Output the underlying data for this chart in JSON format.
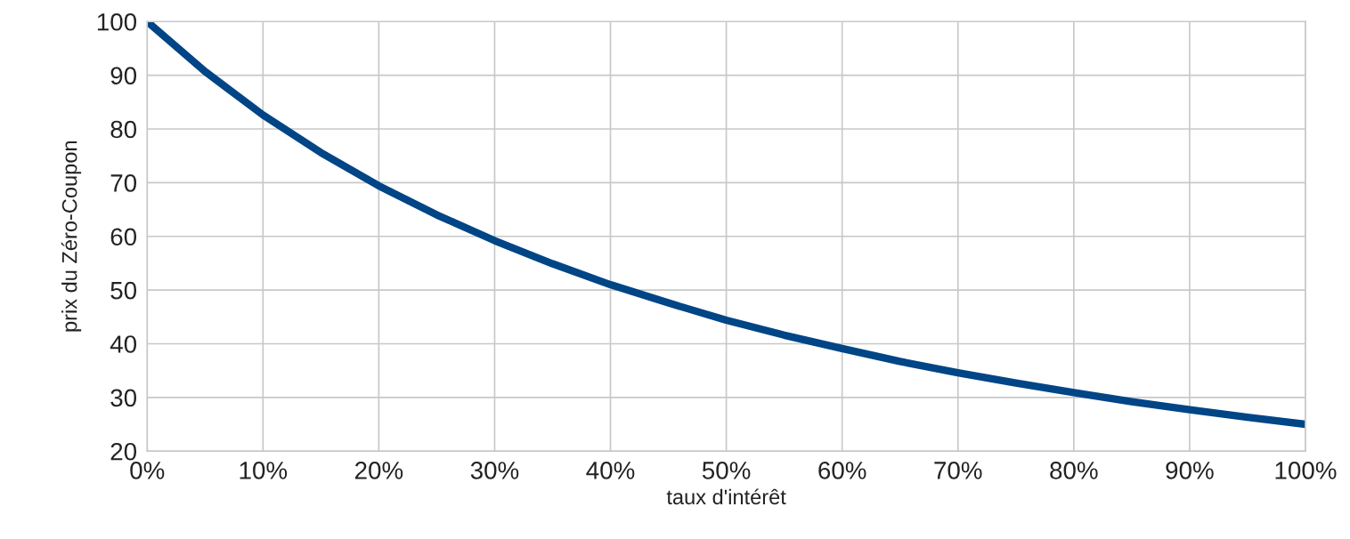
{
  "chart_data": {
    "type": "line",
    "xlabel": "taux d'intérêt",
    "ylabel": "prix du Zéro-Coupon",
    "x": [
      0,
      5,
      10,
      15,
      20,
      25,
      30,
      35,
      40,
      45,
      50,
      55,
      60,
      65,
      70,
      75,
      80,
      85,
      90,
      95,
      100
    ],
    "series": [
      {
        "color": "#004586",
        "values": [
          100,
          90.7,
          82.6,
          75.6,
          69.4,
          64,
          59.2,
          54.9,
          51,
          47.6,
          44.4,
          41.6,
          39.1,
          36.7,
          34.6,
          32.7,
          30.9,
          29.2,
          27.7,
          26.3,
          25
        ]
      }
    ],
    "xlim": [
      0,
      100
    ],
    "xticks": [
      {
        "value": 0,
        "label": "0%"
      },
      {
        "value": 10,
        "label": "10%"
      },
      {
        "value": 20,
        "label": "20%"
      },
      {
        "value": 30,
        "label": "30%"
      },
      {
        "value": 40,
        "label": "40%"
      },
      {
        "value": 50,
        "label": "50%"
      },
      {
        "value": 60,
        "label": "60%"
      },
      {
        "value": 70,
        "label": "70%"
      },
      {
        "value": 80,
        "label": "80%"
      },
      {
        "value": 90,
        "label": "90%"
      },
      {
        "value": 100,
        "label": "100%"
      }
    ],
    "ylim": [
      20,
      100
    ],
    "yticks": [
      20,
      30,
      40,
      50,
      60,
      70,
      80,
      90,
      100
    ],
    "grid": true,
    "marker": "none",
    "line_style": "solid",
    "legend": false
  }
}
